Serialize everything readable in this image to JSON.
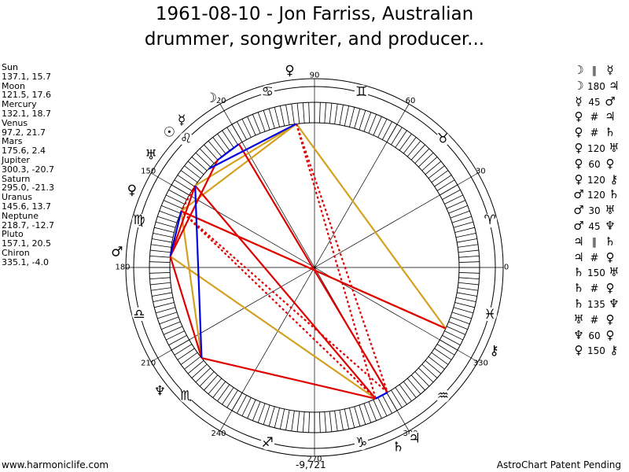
{
  "title": {
    "line1": "1961-08-10 - Jon Farriss, Australian",
    "line2": "drummer, songwriter, and producer..."
  },
  "planets": [
    {
      "name": "Sun",
      "values": "137.1, 15.7",
      "longitude": 137.1,
      "glyph": "☉"
    },
    {
      "name": "Moon",
      "values": "121.5, 17.6",
      "longitude": 121.5,
      "glyph": "☽"
    },
    {
      "name": "Mercury",
      "values": "132.1, 18.7",
      "longitude": 132.1,
      "glyph": "☿"
    },
    {
      "name": "Venus",
      "values": "97.2, 21.7",
      "longitude": 97.2,
      "glyph": "♀"
    },
    {
      "name": "Mars",
      "values": "175.6, 2.4",
      "longitude": 175.6,
      "glyph": "♂"
    },
    {
      "name": "Jupiter",
      "values": "300.3, -20.7",
      "longitude": 300.3,
      "glyph": "♃"
    },
    {
      "name": "Saturn",
      "values": "295.0, -21.3",
      "longitude": 295.0,
      "glyph": "♄"
    },
    {
      "name": "Uranus",
      "values": "145.6, 13.7",
      "longitude": 145.6,
      "glyph": "♅"
    },
    {
      "name": "Neptune",
      "values": "218.7, -12.7",
      "longitude": 218.7,
      "glyph": "♆"
    },
    {
      "name": "Pluto",
      "values": "157.1, 20.5",
      "longitude": 157.1,
      "glyph": "♀"
    },
    {
      "name": "Chiron",
      "values": "335.1, -4.0",
      "longitude": 335.1,
      "glyph": "⚷"
    }
  ],
  "aspects": [
    {
      "p1": "☽",
      "aspect": "∥",
      "p2": "☿",
      "type": "parallel"
    },
    {
      "p1": "☽",
      "aspect": "180",
      "p2": "♃",
      "type": "opposition"
    },
    {
      "p1": "☿",
      "aspect": "45",
      "p2": "♂",
      "type": "semisquare"
    },
    {
      "p1": "♀",
      "aspect": "#",
      "p2": "♃",
      "type": "contraparallel"
    },
    {
      "p1": "♀",
      "aspect": "#",
      "p2": "♄",
      "type": "contraparallel"
    },
    {
      "p1": "♀",
      "aspect": "120",
      "p2": "♅",
      "type": "trine"
    },
    {
      "p1": "♀",
      "aspect": "60",
      "p2": "♀",
      "type": "sextile"
    },
    {
      "p1": "♀",
      "aspect": "120",
      "p2": "⚷",
      "type": "trine"
    },
    {
      "p1": "♂",
      "aspect": "120",
      "p2": "♄",
      "type": "trine"
    },
    {
      "p1": "♂",
      "aspect": "30",
      "p2": "♅",
      "type": "semisextile"
    },
    {
      "p1": "♂",
      "aspect": "45",
      "p2": "♆",
      "type": "semisquare"
    },
    {
      "p1": "♃",
      "aspect": "∥",
      "p2": "♄",
      "type": "parallel"
    },
    {
      "p1": "♃",
      "aspect": "#",
      "p2": "♀",
      "type": "contraparallel"
    },
    {
      "p1": "♄",
      "aspect": "150",
      "p2": "♅",
      "type": "quincunx"
    },
    {
      "p1": "♄",
      "aspect": "#",
      "p2": "♀",
      "type": "contraparallel"
    },
    {
      "p1": "♄",
      "aspect": "135",
      "p2": "♆",
      "type": "sesquiquadrate"
    },
    {
      "p1": "♅",
      "aspect": "#",
      "p2": "♀",
      "type": "contraparallel"
    },
    {
      "p1": "♆",
      "aspect": "60",
      "p2": "♀",
      "type": "sextile"
    },
    {
      "p1": "♀",
      "aspect": "150",
      "p2": "⚷",
      "type": "quincunx"
    }
  ],
  "wheel": {
    "degree_labels": [
      "0",
      "30",
      "60",
      "90",
      "120",
      "150",
      "180",
      "210",
      "240",
      "270",
      "300",
      "330"
    ],
    "signs": [
      "♈",
      "♉",
      "♊",
      "♋",
      "♌",
      "♍",
      "♎",
      "♏",
      "♐",
      "♑",
      "♒",
      "♓"
    ],
    "bottom_value": "-9,721"
  },
  "chart_lines": [
    {
      "from": "Venus",
      "to": "Uranus",
      "color": "#d4a020",
      "style": "solid"
    },
    {
      "from": "Venus",
      "to": "Pluto",
      "color": "#d4a020",
      "style": "solid"
    },
    {
      "from": "Venus",
      "to": "Chiron",
      "color": "#d4a020",
      "style": "solid"
    },
    {
      "from": "Pluto",
      "to": "Chiron",
      "color": "#d4a020",
      "style": "solid"
    },
    {
      "from": "Mars",
      "to": "Saturn",
      "color": "#d4a020",
      "style": "solid"
    },
    {
      "from": "Neptune",
      "to": "Pluto",
      "color": "#d4a020",
      "style": "solid"
    },
    {
      "from": "Moon",
      "to": "Jupiter",
      "color": "#e00000",
      "style": "solid"
    },
    {
      "from": "Mercury",
      "to": "Mars",
      "color": "#e00000",
      "style": "solid"
    },
    {
      "from": "Mars",
      "to": "Neptune",
      "color": "#e00000",
      "style": "solid"
    },
    {
      "from": "Mars",
      "to": "Uranus",
      "color": "#e00000",
      "style": "solid"
    },
    {
      "from": "Saturn",
      "to": "Neptune",
      "color": "#e00000",
      "style": "solid"
    },
    {
      "from": "Saturn",
      "to": "Uranus",
      "color": "#e00000",
      "style": "solid"
    },
    {
      "from": "Pluto",
      "to": "Chiron",
      "color": "#e00000",
      "style": "solid"
    },
    {
      "from": "Venus",
      "to": "Jupiter",
      "color": "#e00000",
      "style": "dotted"
    },
    {
      "from": "Venus",
      "to": "Saturn",
      "color": "#e00000",
      "style": "dotted"
    },
    {
      "from": "Jupiter",
      "to": "Pluto",
      "color": "#e00000",
      "style": "dotted"
    },
    {
      "from": "Saturn",
      "to": "Pluto",
      "color": "#e00000",
      "style": "dotted"
    },
    {
      "from": "Uranus",
      "to": "Pluto",
      "color": "#e00000",
      "style": "dotted"
    },
    {
      "from": "Moon",
      "to": "Mercury",
      "color": "#0000e0",
      "style": "solid"
    },
    {
      "from": "Jupiter",
      "to": "Saturn",
      "color": "#0000e0",
      "style": "solid"
    },
    {
      "from": "Sun",
      "to": "Venus",
      "color": "#0000e0",
      "style": "solid"
    },
    {
      "from": "Uranus",
      "to": "Neptune",
      "color": "#0000e0",
      "style": "solid"
    },
    {
      "from": "Pluto",
      "to": "Mars",
      "color": "#0000e0",
      "style": "solid"
    }
  ],
  "footer": {
    "left": "www.harmoniclife.com",
    "right": "AstroChart Patent Pending"
  }
}
